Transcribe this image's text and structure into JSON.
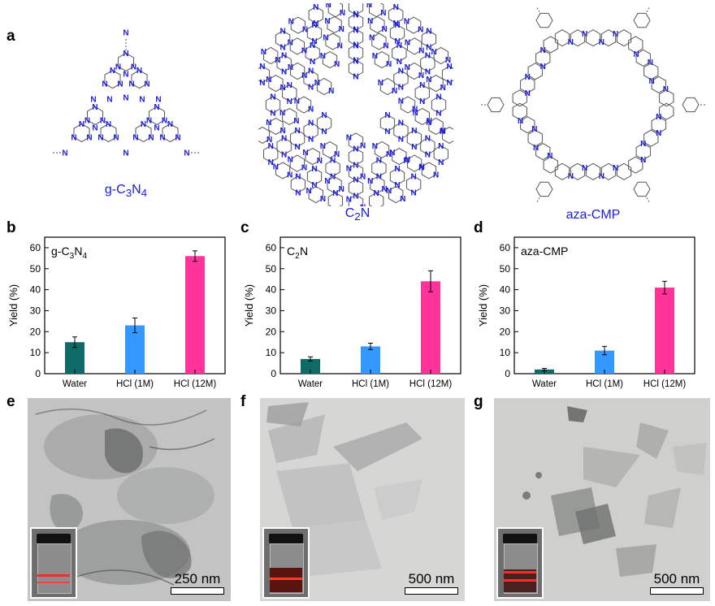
{
  "panels": {
    "a": "a",
    "b": "b",
    "c": "c",
    "d": "d",
    "e": "e",
    "f": "f",
    "g": "g"
  },
  "structures": [
    {
      "name_base": "g-C",
      "name_sub1": "3",
      "name_mid": "N",
      "name_sub2": "4"
    },
    {
      "name_base": "C",
      "name_sub1": "2",
      "name_mid": "N",
      "name_sub2": ""
    },
    {
      "name_base": "aza-CMP",
      "name_sub1": "",
      "name_mid": "",
      "name_sub2": ""
    }
  ],
  "atom_label": "N",
  "colors": {
    "structure_blue": "#1a1ae6",
    "bar_water": "#0e6a66",
    "bar_hcl1": "#3399ff",
    "bar_hcl12": "#ff3399"
  },
  "chart_data": [
    {
      "type": "bar",
      "title_base": "g-C",
      "title_sub1": "3",
      "title_mid": "N",
      "title_sub2": "4",
      "categories": [
        "Water",
        "HCl (1M)",
        "HCl (12M)"
      ],
      "values": [
        15,
        23,
        56
      ],
      "errors": [
        2.5,
        3.5,
        2.5
      ],
      "ylabel": "Yield (%)",
      "ylim": [
        0,
        65
      ],
      "yticks": [
        0,
        10,
        20,
        30,
        40,
        50,
        60
      ]
    },
    {
      "type": "bar",
      "title_base": "C",
      "title_sub1": "2",
      "title_mid": "N",
      "title_sub2": "",
      "categories": [
        "Water",
        "HCl (1M)",
        "HCl (12M)"
      ],
      "values": [
        7,
        13,
        44
      ],
      "errors": [
        1,
        1.5,
        5
      ],
      "ylabel": "Yield (%)",
      "ylim": [
        0,
        65
      ],
      "yticks": [
        0,
        10,
        20,
        30,
        40,
        50,
        60
      ]
    },
    {
      "type": "bar",
      "title_base": "aza-CMP",
      "title_sub1": "",
      "title_mid": "",
      "title_sub2": "",
      "categories": [
        "Water",
        "HCl (1M)",
        "HCl (12M)"
      ],
      "values": [
        2,
        11,
        41
      ],
      "errors": [
        0.5,
        2,
        3
      ],
      "ylabel": "Yield (%)",
      "ylim": [
        0,
        65
      ],
      "yticks": [
        0,
        10,
        20,
        30,
        40,
        50,
        60
      ]
    }
  ],
  "tem_images": [
    {
      "scale": "250 nm"
    },
    {
      "scale": "500 nm"
    },
    {
      "scale": "500 nm"
    }
  ]
}
